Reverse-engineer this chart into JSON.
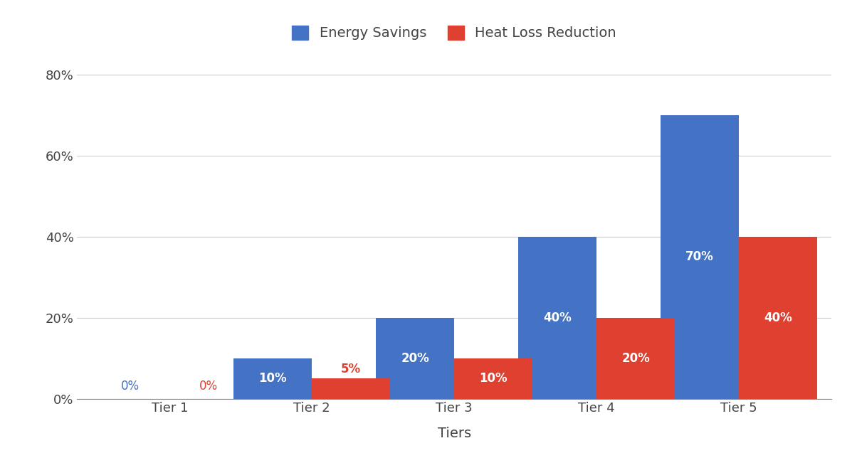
{
  "categories": [
    "Tier 1",
    "Tier 2",
    "Tier 3",
    "Tier 4",
    "Tier 5"
  ],
  "energy_savings": [
    0,
    10,
    20,
    40,
    70
  ],
  "heat_loss_reduction": [
    0,
    5,
    10,
    20,
    40
  ],
  "energy_color": "#4472C4",
  "heat_loss_color": "#E04030",
  "xlabel": "Tiers",
  "ylabel": "",
  "ylim": [
    0,
    85
  ],
  "yticks": [
    0,
    20,
    40,
    60,
    80
  ],
  "ytick_labels": [
    "0%",
    "20%",
    "40%",
    "60%",
    "80%"
  ],
  "legend_labels": [
    "Energy Savings",
    "Heat Loss Reduction"
  ],
  "bar_width": 0.55,
  "background_color": "#ffffff",
  "grid_color": "#cccccc",
  "tick_fontsize": 13,
  "legend_fontsize": 14,
  "xlabel_fontsize": 14,
  "title_color": "#444444",
  "annotation_fontsize": 12
}
